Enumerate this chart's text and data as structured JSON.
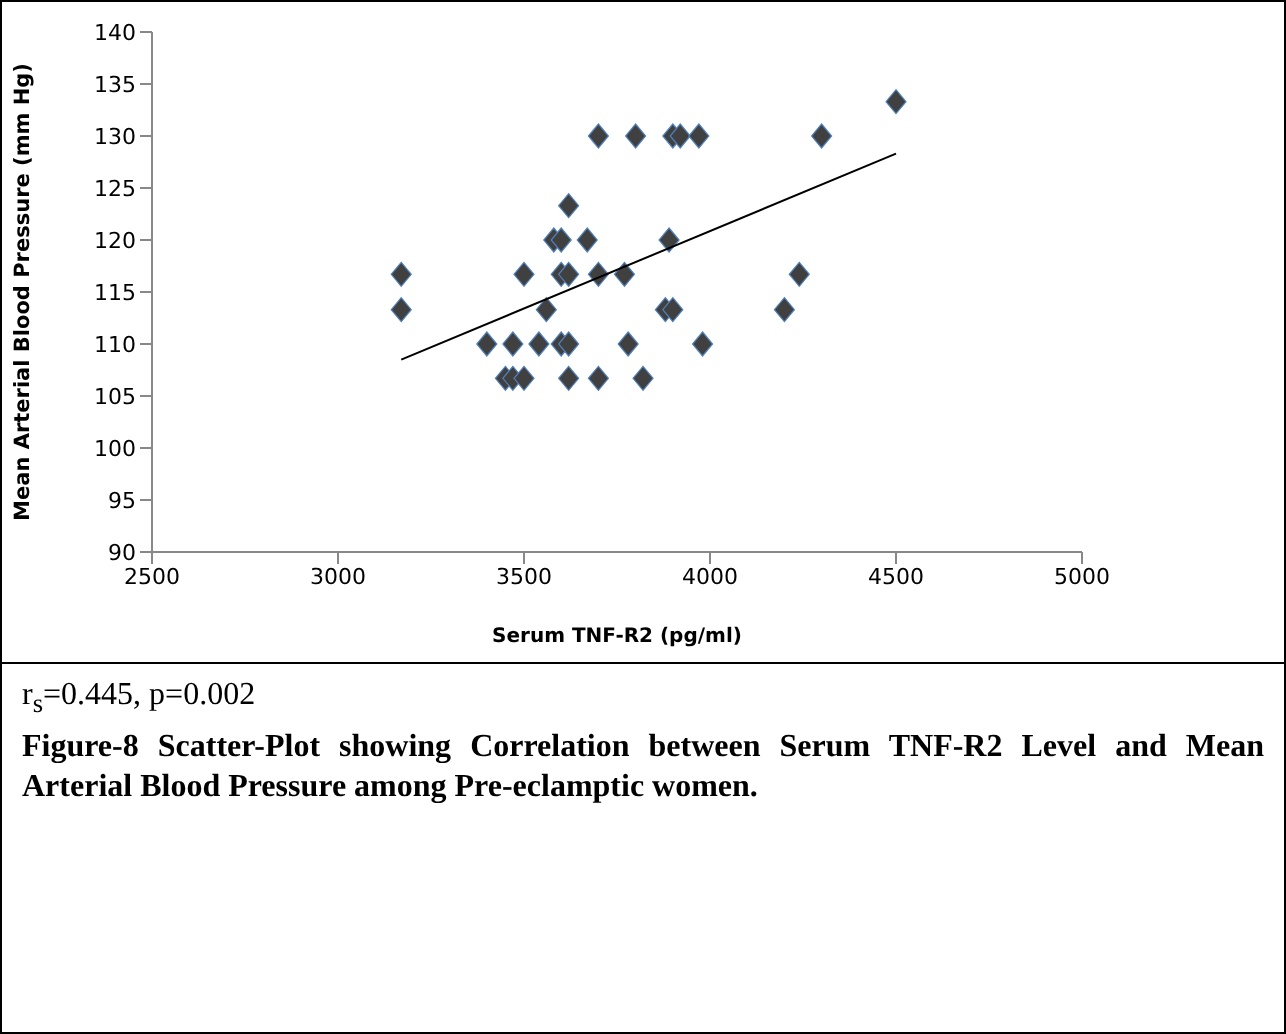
{
  "chart_data": {
    "type": "scatter",
    "xlabel": "Serum TNF-R2 (pg/ml)",
    "ylabel": "Mean Arterial Blood Pressure (mm Hg)",
    "xlim": [
      2500,
      5000
    ],
    "xticks": [
      2500,
      3000,
      3500,
      4000,
      4500,
      5000
    ],
    "ylim": [
      90,
      140
    ],
    "yticks": [
      90,
      95,
      100,
      105,
      110,
      115,
      120,
      125,
      130,
      135,
      140
    ],
    "grid": false,
    "legend": false,
    "marker": "diamond",
    "series": [
      {
        "type": "scatter",
        "color": "#404040",
        "x": [
          3700,
          3800,
          3900,
          3920,
          3970,
          3620,
          3580,
          3600,
          3670,
          3890,
          3170,
          3500,
          3600,
          3620,
          3700,
          3770,
          3170,
          3560,
          3880,
          3900,
          3400,
          3470,
          3540,
          3600,
          3620,
          3780,
          3980,
          3450,
          3470,
          3500,
          3620,
          3700,
          3820,
          4500,
          4300,
          4240,
          4200
        ],
        "values": [
          130,
          130,
          130,
          130,
          130,
          123.3,
          120,
          120,
          120,
          120,
          116.7,
          116.7,
          116.7,
          116.7,
          116.7,
          116.7,
          113.3,
          113.3,
          113.3,
          113.3,
          110,
          110,
          110,
          110,
          110,
          110,
          110,
          106.7,
          106.7,
          106.7,
          106.7,
          106.7,
          106.7,
          133.3,
          130,
          116.7,
          113.3
        ]
      },
      {
        "type": "line",
        "color": "#000000",
        "marker": "none",
        "x": [
          3170,
          4500
        ],
        "values": [
          108.5,
          128.3
        ]
      }
    ],
    "annotations": [
      "r$_{s}$=0.445, p=0.002",
      "Figure-8 Scatter-Plot showing Correlation between Serum TNF-R2 Level and Mean Arterial Blood Pressure among Pre-eclamptic women."
    ]
  }
}
